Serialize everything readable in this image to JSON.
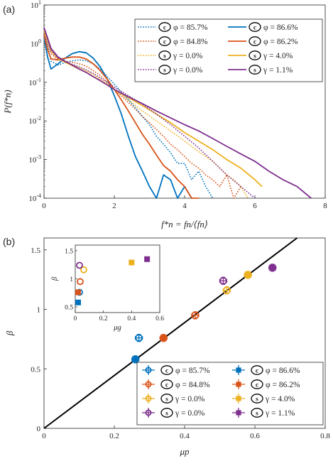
{
  "chart_data": [
    {
      "panel": "(a)",
      "type": "line",
      "xlabel": "f*n = fn/⟨fn⟩",
      "ylabel": "P(f*n)",
      "xlim": [
        0,
        8
      ],
      "ylim": [
        0.0001,
        10
      ],
      "yscale": "log",
      "xticks": [
        "0",
        "2",
        "4",
        "6",
        "8"
      ],
      "yticks": [
        "10-4",
        "10-3",
        "10-2",
        "10-1",
        "100",
        "101"
      ],
      "legend_location": "top-right",
      "series": [
        {
          "badge": "c",
          "label": "φ = 85.7%",
          "color": "#0072BD",
          "dash": "dotted",
          "x": [
            0,
            0.1,
            0.2,
            0.4,
            0.6,
            0.8,
            1.0,
            1.2,
            1.4,
            1.6,
            1.8,
            2.0,
            2.2,
            2.4,
            2.6,
            2.8,
            3.0,
            3.2,
            3.4,
            3.6,
            3.8,
            4.0,
            4.2,
            4.4,
            4.6,
            4.8
          ],
          "y": [
            1.8,
            0.9,
            0.35,
            0.28,
            0.32,
            0.36,
            0.38,
            0.36,
            0.3,
            0.22,
            0.14,
            0.09,
            0.055,
            0.035,
            0.022,
            0.013,
            0.008,
            0.004,
            0.0025,
            0.0015,
            0.0008,
            0.0008,
            0.0003,
            0.0005,
            0.0002,
            0.0001
          ]
        },
        {
          "badge": "c",
          "label": "φ = 86.6%",
          "color": "#0072BD",
          "dash": "solid",
          "x": [
            0,
            0.1,
            0.2,
            0.4,
            0.6,
            0.8,
            1.0,
            1.2,
            1.4,
            1.6,
            1.8,
            2.0,
            2.2,
            2.4,
            2.6,
            2.8,
            3.0,
            3.2,
            3.4,
            3.6,
            3.8,
            4.0,
            4.2
          ],
          "y": [
            1.5,
            0.45,
            0.22,
            0.3,
            0.42,
            0.55,
            0.62,
            0.58,
            0.42,
            0.25,
            0.12,
            0.045,
            0.015,
            0.004,
            0.0012,
            0.0005,
            0.0002,
            0.0001,
            0.0004,
            0.0003,
            0.0001,
            0.0002,
            0.0001
          ]
        },
        {
          "badge": "c",
          "label": "φ = 84.8%",
          "color": "#D95319",
          "dash": "dotted",
          "x": [
            0,
            0.1,
            0.2,
            0.4,
            0.6,
            0.8,
            1.0,
            1.2,
            1.4,
            1.6,
            1.8,
            2.0,
            2.2,
            2.4,
            2.6,
            2.8,
            3.0,
            3.2,
            3.4,
            3.6,
            3.8,
            4.0,
            4.2,
            4.4,
            4.6,
            4.8,
            5.0,
            5.2,
            5.4,
            5.6
          ],
          "y": [
            2.0,
            1.0,
            0.55,
            0.38,
            0.35,
            0.33,
            0.3,
            0.26,
            0.2,
            0.15,
            0.1,
            0.065,
            0.045,
            0.03,
            0.02,
            0.013,
            0.009,
            0.006,
            0.004,
            0.0025,
            0.0018,
            0.0012,
            0.0008,
            0.0006,
            0.0004,
            0.0003,
            0.0002,
            0.0004,
            0.0001,
            0.0002
          ]
        },
        {
          "badge": "c",
          "label": "φ = 86.2%",
          "color": "#D95319",
          "dash": "solid",
          "x": [
            0,
            0.1,
            0.2,
            0.4,
            0.6,
            0.8,
            1.0,
            1.2,
            1.4,
            1.6,
            1.8,
            2.0,
            2.2,
            2.4,
            2.6,
            2.8,
            3.0,
            3.2,
            3.4,
            3.6,
            3.8,
            4.0,
            4.2,
            4.4
          ],
          "y": [
            1.7,
            0.7,
            0.4,
            0.38,
            0.42,
            0.45,
            0.45,
            0.4,
            0.3,
            0.2,
            0.12,
            0.065,
            0.035,
            0.018,
            0.009,
            0.0045,
            0.0025,
            0.0013,
            0.0007,
            0.0005,
            0.0003,
            0.0002,
            0.0001,
            0.0001
          ]
        },
        {
          "badge": "s",
          "label": "γ = 0.0%",
          "color": "#EDB120",
          "dash": "dotted",
          "x": [
            0,
            0.1,
            0.2,
            0.4,
            0.6,
            0.8,
            1.0,
            1.2,
            1.4,
            1.6,
            1.8,
            2.0,
            2.4,
            2.8,
            3.2,
            3.6,
            4.0,
            4.4,
            4.8,
            5.0,
            5.2,
            5.4,
            5.6,
            5.8
          ],
          "y": [
            2.2,
            1.2,
            0.6,
            0.4,
            0.33,
            0.28,
            0.24,
            0.2,
            0.16,
            0.12,
            0.09,
            0.065,
            0.035,
            0.018,
            0.01,
            0.0055,
            0.003,
            0.0016,
            0.0009,
            0.0006,
            0.0004,
            0.0003,
            0.0002,
            0.0001
          ]
        },
        {
          "badge": "s",
          "label": "γ = 4.0%",
          "color": "#EDB120",
          "dash": "solid",
          "x": [
            0,
            0.1,
            0.2,
            0.4,
            0.6,
            0.8,
            1.0,
            1.2,
            1.4,
            1.6,
            1.8,
            2.0,
            2.4,
            2.8,
            3.2,
            3.6,
            4.0,
            4.4,
            4.8,
            5.2,
            5.6,
            6.0,
            6.2
          ],
          "y": [
            2.2,
            1.3,
            0.7,
            0.42,
            0.33,
            0.27,
            0.22,
            0.18,
            0.14,
            0.11,
            0.085,
            0.065,
            0.04,
            0.025,
            0.015,
            0.009,
            0.005,
            0.003,
            0.0018,
            0.001,
            0.0006,
            0.0003,
            0.0002
          ]
        },
        {
          "badge": "s",
          "label": "γ = 0.0%",
          "color": "#7E2F8E",
          "dash": "dotted",
          "x": [
            0,
            0.1,
            0.2,
            0.4,
            0.6,
            0.8,
            1.0,
            1.2,
            1.4,
            1.6,
            1.8,
            2.0,
            2.4,
            2.8,
            3.2,
            3.6,
            4.0,
            4.4,
            4.8,
            5.2,
            5.6,
            6.0
          ],
          "y": [
            2.5,
            1.3,
            0.65,
            0.42,
            0.34,
            0.29,
            0.25,
            0.21,
            0.17,
            0.13,
            0.1,
            0.075,
            0.045,
            0.027,
            0.015,
            0.008,
            0.004,
            0.002,
            0.0009,
            0.0004,
            0.0002,
            0.0001
          ]
        },
        {
          "badge": "s",
          "label": "γ = 1.1%",
          "color": "#7E2F8E",
          "dash": "solid",
          "x": [
            0,
            0.1,
            0.2,
            0.4,
            0.6,
            0.8,
            1.0,
            1.2,
            1.4,
            1.6,
            1.8,
            2.0,
            2.4,
            2.8,
            3.2,
            3.6,
            4.0,
            4.4,
            4.8,
            5.2,
            5.6,
            6.0,
            6.4,
            6.8,
            7.2,
            7.6
          ],
          "y": [
            2.6,
            1.4,
            0.75,
            0.45,
            0.35,
            0.28,
            0.22,
            0.18,
            0.14,
            0.11,
            0.085,
            0.065,
            0.042,
            0.028,
            0.018,
            0.012,
            0.008,
            0.0055,
            0.0035,
            0.0022,
            0.0014,
            0.0009,
            0.0005,
            0.0003,
            0.0002,
            0.0001
          ]
        }
      ]
    },
    {
      "panel": "(b)",
      "type": "scatter",
      "xlabel": "μp",
      "ylabel": "β",
      "xlim": [
        0,
        0.8
      ],
      "ylim": [
        0,
        1.6
      ],
      "xticks": [
        "0",
        "0.2",
        "0.4",
        "0.6",
        "0.8"
      ],
      "yticks": [
        "0",
        "0.5",
        "1",
        "1.5"
      ],
      "legend_location": "bottom-right",
      "line": {
        "x": [
          0,
          0.72
        ],
        "y": [
          0,
          1.6
        ],
        "color": "#000000"
      },
      "series": [
        {
          "badge": "c",
          "label": "φ = 85.7%",
          "color": "#0072BD",
          "marker": "open-circle",
          "x": 0.27,
          "y": 0.76
        },
        {
          "badge": "c",
          "label": "φ = 86.6%",
          "color": "#0072BD",
          "marker": "filled-square",
          "x": 0.26,
          "y": 0.58
        },
        {
          "badge": "c",
          "label": "φ = 84.8%",
          "color": "#D95319",
          "marker": "open-circle",
          "x": 0.43,
          "y": 0.95
        },
        {
          "badge": "c",
          "label": "φ = 86.2%",
          "color": "#D95319",
          "marker": "filled-square",
          "x": 0.34,
          "y": 0.76
        },
        {
          "badge": "s",
          "label": "γ = 0.0%",
          "color": "#EDB120",
          "marker": "open-circle",
          "x": 0.52,
          "y": 1.16
        },
        {
          "badge": "s",
          "label": "γ = 4.0%",
          "color": "#EDB120",
          "marker": "filled-square",
          "x": 0.58,
          "y": 1.29
        },
        {
          "badge": "s",
          "label": "γ = 0.0%",
          "color": "#7E2F8E",
          "marker": "open-circle",
          "x": 0.51,
          "y": 1.24
        },
        {
          "badge": "s",
          "label": "γ = 1.1%",
          "color": "#7E2F8E",
          "marker": "filled-square",
          "x": 0.65,
          "y": 1.35
        }
      ],
      "inset": {
        "xlabel": "μg",
        "ylabel": "β",
        "xlim": [
          0,
          0.6
        ],
        "ylim": [
          0.4,
          1.6
        ],
        "xticks": [
          "0",
          "0.2",
          "0.4",
          "0.6"
        ],
        "yticks": [
          "0.5",
          "1",
          "1.5"
        ],
        "points": [
          {
            "color": "#0072BD",
            "marker": "open-circle",
            "x": 0.03,
            "y": 0.76
          },
          {
            "color": "#0072BD",
            "marker": "filled-square",
            "x": 0.02,
            "y": 0.58
          },
          {
            "color": "#D95319",
            "marker": "open-circle",
            "x": 0.035,
            "y": 0.95
          },
          {
            "color": "#D95319",
            "marker": "filled-square",
            "x": 0.02,
            "y": 0.76
          },
          {
            "color": "#EDB120",
            "marker": "open-circle",
            "x": 0.06,
            "y": 1.16
          },
          {
            "color": "#EDB120",
            "marker": "filled-square",
            "x": 0.4,
            "y": 1.29
          },
          {
            "color": "#7E2F8E",
            "marker": "open-circle",
            "x": 0.03,
            "y": 1.24
          },
          {
            "color": "#7E2F8E",
            "marker": "filled-square",
            "x": 0.51,
            "y": 1.35
          }
        ]
      }
    }
  ]
}
